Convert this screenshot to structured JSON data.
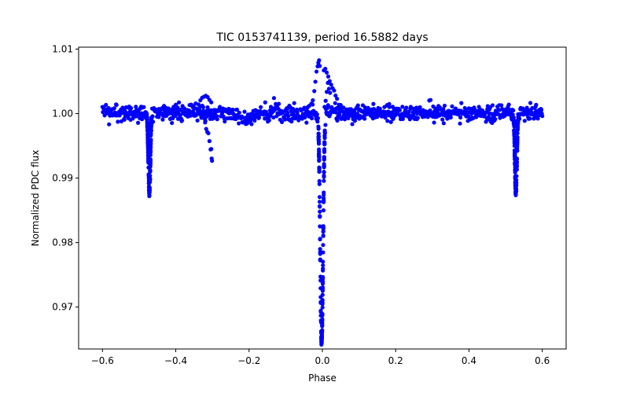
{
  "chart_data": {
    "type": "scatter",
    "title": "TIC 0153741139, period 16.5882 days",
    "xlabel": "Phase",
    "ylabel": "Normalized PDC flux",
    "xlim": [
      -0.665,
      0.665
    ],
    "ylim": [
      0.9635,
      1.0103
    ],
    "grid": false,
    "marker_color": "#0000ff",
    "x_ticks": [
      {
        "value": -0.6,
        "label": "−0.6"
      },
      {
        "value": -0.4,
        "label": "−0.4"
      },
      {
        "value": -0.2,
        "label": "−0.2"
      },
      {
        "value": 0.0,
        "label": "0.0"
      },
      {
        "value": 0.2,
        "label": "0.2"
      },
      {
        "value": 0.4,
        "label": "0.4"
      },
      {
        "value": 0.6,
        "label": "0.6"
      }
    ],
    "y_ticks": [
      {
        "value": 0.97,
        "label": "0.97"
      },
      {
        "value": 0.98,
        "label": "0.98"
      },
      {
        "value": 0.99,
        "label": "0.99"
      },
      {
        "value": 1.0,
        "label": "1.00"
      },
      {
        "value": 1.01,
        "label": "1.01"
      }
    ],
    "series": [
      {
        "baseline": {
          "x_range": [
            -0.6,
            0.6
          ],
          "y_center": 1.0001,
          "y_scatter": 0.0012
        },
        "dip_features": [
          {
            "x_center": -0.472,
            "y_min": 0.9878
          },
          {
            "x_center": 0.528,
            "y_min": 0.9878
          },
          {
            "x_center": -0.002,
            "y_min": 0.9645
          }
        ],
        "points": [
          [
            -0.32,
            0.9985
          ],
          [
            -0.317,
            0.9978
          ],
          [
            -0.314,
            0.9972
          ],
          [
            -0.311,
            0.9962
          ],
          [
            -0.308,
            0.9955
          ],
          [
            -0.305,
            0.9944
          ],
          [
            -0.303,
            0.9943
          ],
          [
            -0.302,
            0.9928
          ],
          [
            -0.301,
            0.9926
          ],
          [
            -0.338,
            1.0015
          ],
          [
            -0.333,
            1.002
          ],
          [
            -0.328,
            1.0025
          ],
          [
            -0.323,
            1.0028
          ],
          [
            -0.318,
            1.0029
          ],
          [
            -0.313,
            1.0027
          ],
          [
            -0.308,
            1.0022
          ],
          [
            -0.303,
            1.0016
          ],
          [
            -0.03,
            1.0012
          ],
          [
            -0.026,
            1.0022
          ],
          [
            -0.022,
            1.0035
          ],
          [
            -0.019,
            1.0048
          ],
          [
            -0.016,
            1.0062
          ],
          [
            -0.013,
            1.0072
          ],
          [
            -0.011,
            1.0078
          ],
          [
            -0.009,
            1.0081
          ],
          [
            -0.007,
            1.0076
          ],
          [
            0.004,
            1.0068
          ],
          [
            0.008,
            1.0066
          ],
          [
            0.012,
            1.0062
          ],
          [
            0.016,
            1.0058
          ],
          [
            0.02,
            1.0052
          ],
          [
            0.024,
            1.0046
          ],
          [
            0.028,
            1.004
          ],
          [
            0.032,
            1.0034
          ],
          [
            0.036,
            1.0028
          ],
          [
            0.04,
            1.0022
          ],
          [
            0.045,
            1.0017
          ],
          [
            0.05,
            1.0012
          ],
          [
            0.055,
            1.0008
          ],
          [
            0.006,
            1.0012
          ],
          [
            0.009,
            1.0022
          ],
          [
            0.012,
            1.0034
          ],
          [
            0.015,
            1.0044
          ],
          [
            0.018,
            1.0038
          ],
          [
            0.021,
            1.003
          ]
        ]
      }
    ]
  }
}
